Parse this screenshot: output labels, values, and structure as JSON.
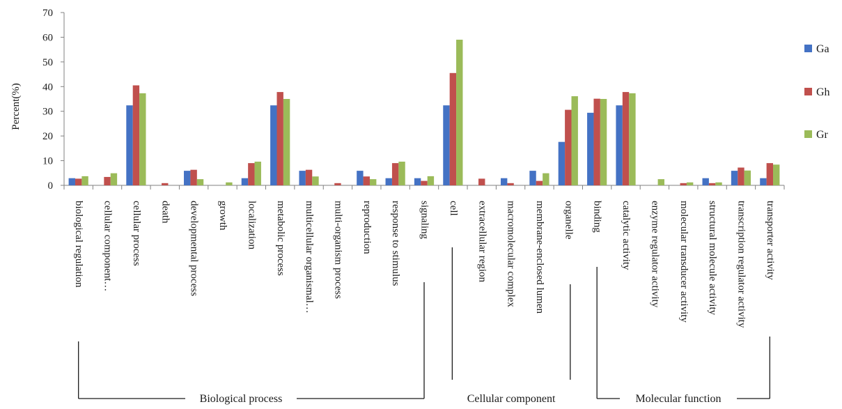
{
  "chart_data": {
    "type": "bar",
    "ylabel": "Percent(%)",
    "ylim": [
      0,
      70
    ],
    "yticks": [
      0,
      10,
      20,
      30,
      40,
      50,
      60,
      70
    ],
    "grid": false,
    "legend_position": "right",
    "categories": [
      "biological regulation",
      "cellular component…",
      "cellular process",
      "death",
      "developmental process",
      "growth",
      "localization",
      "metabolic process",
      "multicellular organismal…",
      "multi-organism process",
      "reproduction",
      "response to stimulus",
      "signaling",
      "cell",
      "extracellular region",
      "macromolecular complex",
      "membrane-enclosed lumen",
      "organelle",
      "binding",
      "catalytic activity",
      "enzyme regulator activity",
      "molecular transducer activity",
      "structural molecule activity",
      "transcription regulator activity",
      "transporter activity"
    ],
    "series": [
      {
        "name": "Ga",
        "color": "#4472c4",
        "values": [
          2.9,
          0,
          32.4,
          0,
          5.9,
          0,
          2.9,
          32.4,
          5.9,
          0,
          5.9,
          2.9,
          2.9,
          32.4,
          0,
          2.9,
          5.9,
          17.6,
          29.4,
          32.4,
          0,
          0,
          2.9,
          5.9,
          2.9
        ]
      },
      {
        "name": "Gh",
        "color": "#c0504d",
        "values": [
          2.7,
          3.4,
          40.5,
          0.9,
          6.3,
          0,
          9.0,
          37.8,
          6.3,
          0.9,
          3.6,
          9.0,
          1.8,
          45.5,
          2.7,
          0.9,
          1.8,
          30.6,
          35.1,
          37.8,
          0,
          0.9,
          0.9,
          7.2,
          9.0
        ]
      },
      {
        "name": "Gr",
        "color": "#9bbb59",
        "values": [
          3.7,
          4.9,
          37.3,
          0,
          2.5,
          1.2,
          9.6,
          35.0,
          3.6,
          0,
          2.5,
          9.6,
          3.7,
          59.0,
          0,
          0,
          4.9,
          36.1,
          35.0,
          37.3,
          2.5,
          1.2,
          1.2,
          6.0,
          8.4
        ]
      }
    ],
    "groups": [
      {
        "label": "Biological process",
        "start": 0,
        "end": 12
      },
      {
        "label": "Cellular component",
        "start": 13,
        "end": 17
      },
      {
        "label": "Molecular function",
        "start": 18,
        "end": 24
      }
    ]
  }
}
